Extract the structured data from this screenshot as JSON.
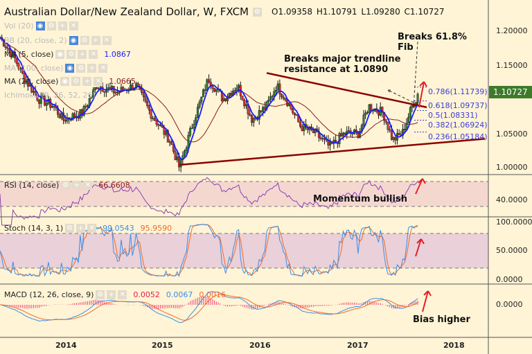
{
  "header": {
    "title": "Australian Dollar/New Zealand Dollar, W, FXCM",
    "open": "O1.09358",
    "high": "H1.10791",
    "low": "L1.09280",
    "close": "C1.10727"
  },
  "indicators": {
    "vol": "Vol (20)",
    "bb": "BB (20, close, 2)",
    "ma5": "MA (5, close)",
    "ma5_value": "1.0867",
    "ma100": "MA (100, close)",
    "ma20": "MA (20, close)",
    "ma20_value": "1.0665",
    "ichimoku": "Ichimoku (9, 26, 52, 26)",
    "rsi": "RSI (14, close)",
    "rsi_value": "66.6608",
    "stoch": "Stoch (14, 3, 1)",
    "stoch_k": "99.0543",
    "stoch_d": "95.9590",
    "macd": "MACD (12, 26, close, 9)",
    "macd_hist": "0.0052",
    "macd_value": "0.0067",
    "macd_signal": "0.0016"
  },
  "annotations": {
    "fib_break": "Breaks 61.8%\nFib",
    "trendline": "Breaks major trendline\nresistance at 1.0890",
    "momentum": "Momentum bullish",
    "bias": "Bias higher"
  },
  "fib_levels": [
    {
      "label": "0.786(1.11739)",
      "value": 1.11739
    },
    {
      "label": "0.618(1.09737)",
      "value": 1.09737
    },
    {
      "label": "0.5(1.08331)",
      "value": 1.08331
    },
    {
      "label": "0.382(1.06924)",
      "value": 1.06924
    },
    {
      "label": "0.236(1.05184)",
      "value": 1.05184
    }
  ],
  "axis": {
    "price_ticks": [
      "1.20000",
      "1.15000",
      "1.05000",
      "1.00000"
    ],
    "last_price": "1.10727",
    "rsi_ticks": [
      "40.0000"
    ],
    "stoch_ticks": [
      "100.0000",
      "50.0000",
      "0.0000"
    ],
    "macd_ticks": [
      "0.0000"
    ],
    "x_ticks": [
      "2014",
      "2015",
      "2016",
      "2017",
      "2018"
    ]
  },
  "colors": {
    "bull": "#2e7d32",
    "bear": "#d32f2f",
    "ma5": "#1a1aff",
    "ma20": "#8b1a1a",
    "rsi": "#8e3fb0",
    "stoch_k": "#3a8ee6",
    "stoch_d": "#f06a2a",
    "trendline": "#8b0000",
    "arrow": "#e0202a"
  },
  "chart_data": {
    "type": "candlestick",
    "timeframe": "W",
    "xlim": [
      2013.35,
      2018.35
    ],
    "ylim": [
      0.985,
      1.24
    ],
    "close_path": [
      [
        2013.35,
        1.19
      ],
      [
        2013.5,
        1.16
      ],
      [
        2013.6,
        1.13
      ],
      [
        2013.75,
        1.1
      ],
      [
        2013.9,
        1.09
      ],
      [
        2014.0,
        1.07
      ],
      [
        2014.2,
        1.08
      ],
      [
        2014.35,
        1.12
      ],
      [
        2014.55,
        1.11
      ],
      [
        2014.75,
        1.12
      ],
      [
        2014.9,
        1.08
      ],
      [
        2015.1,
        1.04
      ],
      [
        2015.2,
        1.0
      ],
      [
        2015.35,
        1.07
      ],
      [
        2015.5,
        1.13
      ],
      [
        2015.65,
        1.1
      ],
      [
        2015.8,
        1.12
      ],
      [
        2015.95,
        1.07
      ],
      [
        2016.1,
        1.09
      ],
      [
        2016.2,
        1.12
      ],
      [
        2016.3,
        1.1
      ],
      [
        2016.45,
        1.06
      ],
      [
        2016.6,
        1.05
      ],
      [
        2016.75,
        1.03
      ],
      [
        2016.9,
        1.05
      ],
      [
        2017.05,
        1.05
      ],
      [
        2017.15,
        1.09
      ],
      [
        2017.3,
        1.08
      ],
      [
        2017.4,
        1.04
      ],
      [
        2017.5,
        1.05
      ],
      [
        2017.6,
        1.09
      ],
      [
        2017.67,
        1.10727
      ]
    ],
    "trendlines": [
      {
        "from": [
          2016.1,
          1.138
        ],
        "to": [
          2017.75,
          1.088
        ]
      },
      {
        "from": [
          2015.2,
          1.004
        ],
        "to": [
          2018.35,
          1.042
        ]
      }
    ],
    "rsi_bands": [
      30,
      70
    ],
    "stoch_bands": [
      20,
      80
    ]
  }
}
